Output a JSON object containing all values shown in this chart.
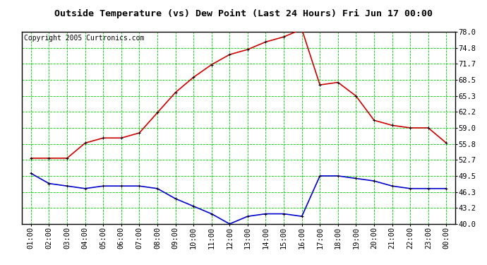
{
  "title": "Outside Temperature (vs) Dew Point (Last 24 Hours) Fri Jun 17 00:00",
  "copyright": "Copyright 2005 Curtronics.com",
  "x_labels": [
    "01:00",
    "02:00",
    "03:00",
    "04:00",
    "05:00",
    "06:00",
    "07:00",
    "08:00",
    "09:00",
    "10:00",
    "11:00",
    "12:00",
    "13:00",
    "14:00",
    "15:00",
    "16:00",
    "17:00",
    "18:00",
    "19:00",
    "20:00",
    "21:00",
    "22:00",
    "23:00",
    "00:00"
  ],
  "temp_values": [
    53.0,
    53.0,
    53.0,
    56.0,
    57.0,
    57.0,
    58.0,
    62.0,
    66.0,
    69.0,
    71.5,
    73.5,
    74.5,
    76.0,
    77.0,
    78.5,
    67.5,
    68.0,
    65.3,
    60.5,
    59.5,
    59.0,
    59.0,
    56.0
  ],
  "dew_values": [
    50.0,
    48.0,
    47.5,
    47.0,
    47.5,
    47.5,
    47.5,
    47.0,
    45.0,
    43.5,
    42.0,
    40.0,
    41.5,
    42.0,
    42.0,
    41.5,
    49.5,
    49.5,
    49.0,
    48.5,
    47.5,
    47.0,
    47.0,
    47.0
  ],
  "temp_color": "#cc0000",
  "dew_color": "#0000cc",
  "marker_color": "#000000",
  "bg_color": "#ffffff",
  "plot_bg_color": "#ffffff",
  "grid_color": "#00cc00",
  "title_color": "#000000",
  "border_color": "#000000",
  "y_ticks": [
    40.0,
    43.2,
    46.3,
    49.5,
    52.7,
    55.8,
    59.0,
    62.2,
    65.3,
    68.5,
    71.7,
    74.8,
    78.0
  ],
  "ylim": [
    40.0,
    78.0
  ],
  "title_fontsize": 9.5,
  "copyright_fontsize": 7,
  "tick_fontsize": 7.5,
  "marker_size": 3.5,
  "line_width": 1.2
}
